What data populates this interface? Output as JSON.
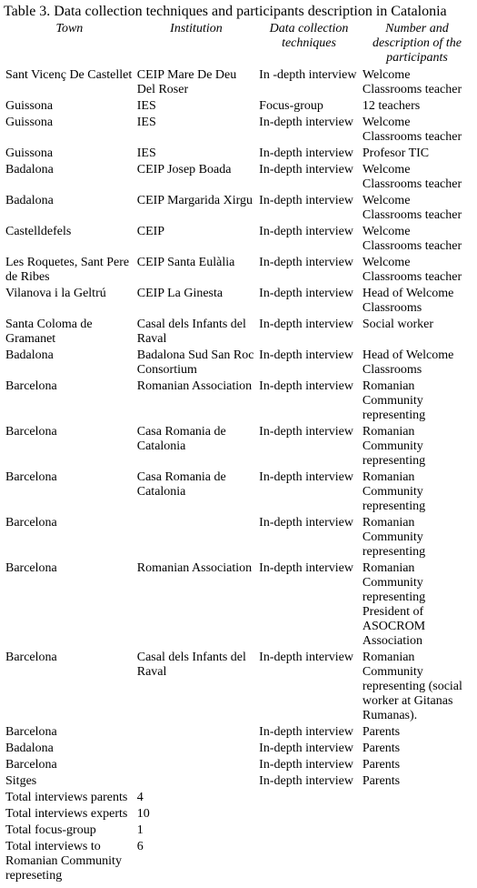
{
  "caption": "Table 3. Data collection techniques and participants description in Catalonia",
  "headers": {
    "town": "Town",
    "institution": "Institution",
    "technique": "Data collection techniques",
    "participants": "Number and description of the participants"
  },
  "rows": [
    {
      "town": "Sant Vicenç De Castellet",
      "institution": "CEIP Mare De Deu Del Roser",
      "technique": "In            -depth interview",
      "participants": "Welcome Classrooms teacher"
    },
    {
      "town": "Guissona",
      "institution": "IES",
      "technique": "Focus-group",
      "participants": "12 teachers"
    },
    {
      "town": "Guissona",
      "institution": "IES",
      "technique": "In-depth interview",
      "participants": "Welcome Classrooms teacher"
    },
    {
      "town": "Guissona",
      "institution": "IES",
      "technique": "In-depth interview",
      "participants": "Profesor TIC"
    },
    {
      "town": "Badalona",
      "institution": "CEIP Josep Boada",
      "technique": "In-depth interview",
      "participants": "Welcome Classrooms teacher"
    },
    {
      "town": "Badalona",
      "institution": "CEIP Margarida Xirgu",
      "technique": "In-depth interview",
      "participants": "Welcome Classrooms teacher"
    },
    {
      "town": "Castelldefels",
      "institution": "CEIP",
      "technique": "In-depth interview",
      "participants": "Welcome Classrooms teacher"
    },
    {
      "town": "Les Roquetes, Sant Pere de Ribes",
      "institution": "CEIP Santa Eulàlia",
      "technique": "In-depth interview",
      "participants": "Welcome Classrooms teacher"
    },
    {
      "town": "Vilanova i la Geltrú",
      "institution": "CEIP La Ginesta",
      "technique": "In-depth interview",
      "participants": "Head of  Welcome Classrooms"
    },
    {
      "town": "Santa Coloma de Gramanet",
      "institution": "Casal dels Infants del Raval",
      "technique": "In-depth interview",
      "participants": "Social worker"
    },
    {
      "town": "Badalona",
      "institution": "Badalona Sud San Roc Consortium",
      "technique": "In-depth interview",
      "participants": "Head of  Welcome Classrooms"
    },
    {
      "town": "Barcelona",
      "institution": "Romanian Association",
      "technique": "In-depth interview",
      "participants": "Romanian Community representing"
    },
    {
      "town": "Barcelona",
      "institution": "Casa Romania de Catalonia",
      "technique": "In-depth interview",
      "participants": "Romanian Community representing"
    },
    {
      "town": "Barcelona",
      "institution": "Casa Romania de Catalonia",
      "technique": "In-depth interview",
      "participants": "Romanian Community representing"
    },
    {
      "town": "Barcelona",
      "institution": "",
      "technique": "In-depth interview",
      "participants": "Romanian Community representing"
    },
    {
      "town": "Barcelona",
      "institution": "Romanian Association",
      "technique": "In-depth interview",
      "participants": "Romanian Community representing President of ASOCROM Association"
    },
    {
      "town": "Barcelona",
      "institution": "Casal dels Infants del Raval",
      "technique": "In-depth interview",
      "participants": "Romanian Community representing (social worker at Gitanas Rumanas)."
    },
    {
      "town": "Barcelona",
      "institution": "",
      "technique": "In-depth interview",
      "participants": "Parents"
    },
    {
      "town": "Badalona",
      "institution": "",
      "technique": "In-depth interview",
      "participants": "Parents"
    },
    {
      "town": "Barcelona",
      "institution": "",
      "technique": "In-depth interview",
      "participants": "Parents"
    },
    {
      "town": "Sitges",
      "institution": "",
      "technique": "In-depth interview",
      "participants": "Parents"
    },
    {
      "town": "Total interviews  parents",
      "institution": "4",
      "technique": "",
      "participants": ""
    },
    {
      "town": "Total interviews experts",
      "institution": "10",
      "technique": "",
      "participants": ""
    },
    {
      "town": "Total focus-group",
      "institution": "1",
      "technique": "",
      "participants": ""
    },
    {
      "town": "Total interviews to Romanian Community represeting",
      "institution": "6",
      "technique": "",
      "participants": ""
    }
  ]
}
